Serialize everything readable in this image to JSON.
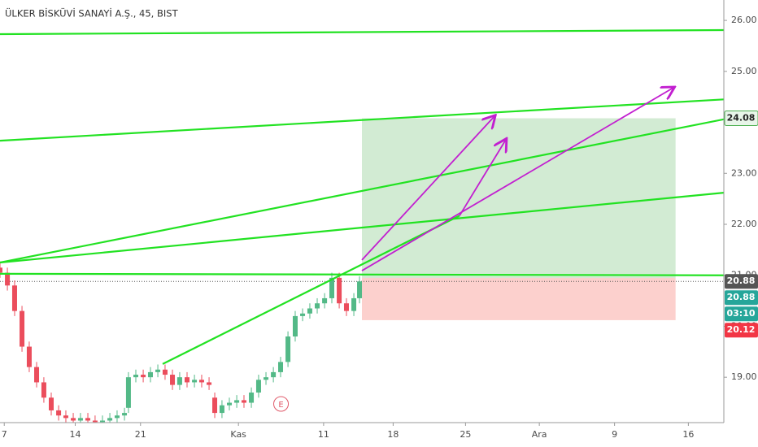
{
  "chart_data": {
    "type": "candlestick",
    "title": "ÜLKER BİSKÜVİ SANAYİ A.Ş., 45, BIST",
    "xlim": [
      0,
      51
    ],
    "xticks": [
      {
        "value": 0.3,
        "label": "7"
      },
      {
        "value": 5.3,
        "label": "14"
      },
      {
        "value": 9.9,
        "label": "21"
      },
      {
        "value": 16.8,
        "label": "Kas"
      },
      {
        "value": 22.8,
        "label": "11"
      },
      {
        "value": 27.7,
        "label": "18"
      },
      {
        "value": 32.8,
        "label": "25"
      },
      {
        "value": 38.0,
        "label": "Ara"
      },
      {
        "value": 43.3,
        "label": "9"
      },
      {
        "value": 48.5,
        "label": "16"
      }
    ],
    "ylim": [
      18.11,
      26.4
    ],
    "yticks": [
      {
        "value": 19,
        "label": "19.00"
      },
      {
        "value": 20,
        "label": "20.00"
      },
      {
        "value": 21,
        "label": "21.00"
      },
      {
        "value": 22,
        "label": "22.00"
      },
      {
        "value": 23,
        "label": "23.00"
      },
      {
        "value": 24,
        "label": "24.00"
      },
      {
        "value": 25,
        "label": "25.00"
      },
      {
        "value": 26,
        "label": "26.00"
      }
    ],
    "up_color": "#53b987",
    "down_color": "#eb4d5c",
    "x": [
      0,
      0.52,
      1.03,
      1.55,
      2.06,
      2.58,
      3.09,
      3.61,
      4.13,
      4.64,
      5.16,
      5.67,
      6.19,
      6.7,
      7.22,
      7.74,
      8.25,
      8.77,
      9.05,
      9.57,
      10.09,
      10.6,
      11.12,
      11.63,
      12.15,
      12.66,
      13.18,
      13.7,
      14.21,
      14.73,
      15.13,
      15.64,
      16.16,
      16.68,
      17.19,
      17.71,
      18.22,
      18.74,
      19.26,
      19.77,
      20.29,
      20.8,
      21.32,
      21.83,
      22.35,
      22.87,
      23.38,
      23.9,
      24.41,
      24.93,
      25.33
    ],
    "open": [
      21.15,
      21.05,
      20.8,
      20.3,
      19.6,
      19.2,
      18.9,
      18.6,
      18.35,
      18.25,
      18.2,
      18.15,
      18.2,
      18.15,
      18.12,
      18.15,
      18.2,
      18.25,
      18.4,
      19.0,
      19.05,
      19.0,
      19.1,
      19.15,
      19.05,
      18.85,
      19.0,
      18.9,
      18.95,
      18.9,
      18.6,
      18.3,
      18.45,
      18.5,
      18.55,
      18.5,
      18.7,
      18.95,
      19.0,
      19.1,
      19.3,
      19.8,
      20.2,
      20.25,
      20.35,
      20.45,
      20.55,
      20.95,
      20.45,
      20.3,
      20.55
    ],
    "high": [
      21.25,
      21.15,
      20.9,
      20.4,
      19.7,
      19.3,
      19.0,
      18.7,
      18.45,
      18.35,
      18.3,
      18.3,
      18.3,
      18.25,
      18.25,
      18.3,
      18.35,
      18.4,
      19.1,
      19.15,
      19.15,
      19.2,
      19.25,
      19.25,
      19.15,
      19.1,
      19.1,
      19.05,
      19.05,
      19.0,
      18.7,
      18.55,
      18.6,
      18.65,
      18.65,
      18.8,
      19.05,
      19.1,
      19.2,
      19.4,
      19.9,
      20.3,
      20.35,
      20.45,
      20.55,
      20.65,
      21.05,
      21.05,
      20.55,
      20.65,
      20.98
    ],
    "low": [
      20.95,
      20.7,
      20.2,
      19.5,
      19.1,
      18.8,
      18.5,
      18.25,
      18.15,
      18.1,
      18.05,
      18.05,
      18.05,
      18.02,
      18.02,
      18.05,
      18.1,
      18.15,
      18.3,
      18.9,
      18.9,
      18.9,
      19.0,
      18.95,
      18.75,
      18.75,
      18.8,
      18.8,
      18.8,
      18.75,
      18.2,
      18.2,
      18.35,
      18.4,
      18.4,
      18.4,
      18.6,
      18.85,
      18.9,
      19.0,
      19.2,
      19.7,
      20.1,
      20.15,
      20.25,
      20.35,
      20.45,
      20.35,
      20.2,
      20.2,
      20.45
    ],
    "close": [
      21.05,
      20.8,
      20.3,
      19.6,
      19.2,
      18.9,
      18.6,
      18.35,
      18.25,
      18.2,
      18.15,
      18.2,
      18.15,
      18.12,
      18.15,
      18.2,
      18.25,
      18.3,
      19.0,
      19.05,
      19.0,
      19.1,
      19.15,
      19.05,
      18.85,
      19.0,
      18.9,
      18.95,
      18.9,
      18.85,
      18.3,
      18.45,
      18.5,
      18.55,
      18.5,
      18.7,
      18.95,
      19.0,
      19.1,
      19.3,
      19.8,
      20.2,
      20.25,
      20.35,
      20.45,
      20.55,
      20.95,
      20.45,
      20.3,
      20.55,
      20.88
    ],
    "last_price": 20.88,
    "trend_lines": [
      {
        "x": [
          0,
          51
        ],
        "y": [
          25.73,
          25.81
        ]
      },
      {
        "x": [
          0,
          51
        ],
        "y": [
          23.64,
          24.45
        ]
      },
      {
        "x": [
          0,
          51
        ],
        "y": [
          21.25,
          24.06
        ]
      },
      {
        "x": [
          0,
          51
        ],
        "y": [
          21.25,
          22.62
        ]
      },
      {
        "x": [
          0,
          51
        ],
        "y": [
          21.03,
          21.0
        ]
      },
      {
        "x": [
          11.46,
          32.38
        ],
        "y": [
          19.26,
          22.17
        ]
      }
    ],
    "arrows": [
      {
        "x": [
          25.5,
          34.84
        ],
        "y": [
          21.3,
          24.12
        ]
      },
      {
        "x": [
          32.38,
          35.64
        ],
        "y": [
          22.17,
          23.66
        ]
      },
      {
        "x": [
          25.5,
          47.45
        ],
        "y": [
          21.09,
          24.68
        ]
      }
    ],
    "position": {
      "x": [
        25.5,
        47.6
      ],
      "target": 24.08,
      "entry": 20.95,
      "stop": 20.12
    },
    "event": {
      "x": 19.8,
      "label": "E"
    },
    "price_tags": [
      {
        "value": 24.08,
        "color": "#e8f5e9",
        "text_color": "#222222"
      },
      {
        "value": 20.88,
        "color": "#555555",
        "text_color": "#ffffff"
      },
      {
        "value": 20.88,
        "color": "#26a69a",
        "text_color": "#ffffff"
      },
      {
        "value": "03:10",
        "color": "#26a69a",
        "text_color": "#ffffff"
      },
      {
        "value": 20.12,
        "color": "#f23645",
        "text_color": "#ffffff"
      }
    ]
  }
}
